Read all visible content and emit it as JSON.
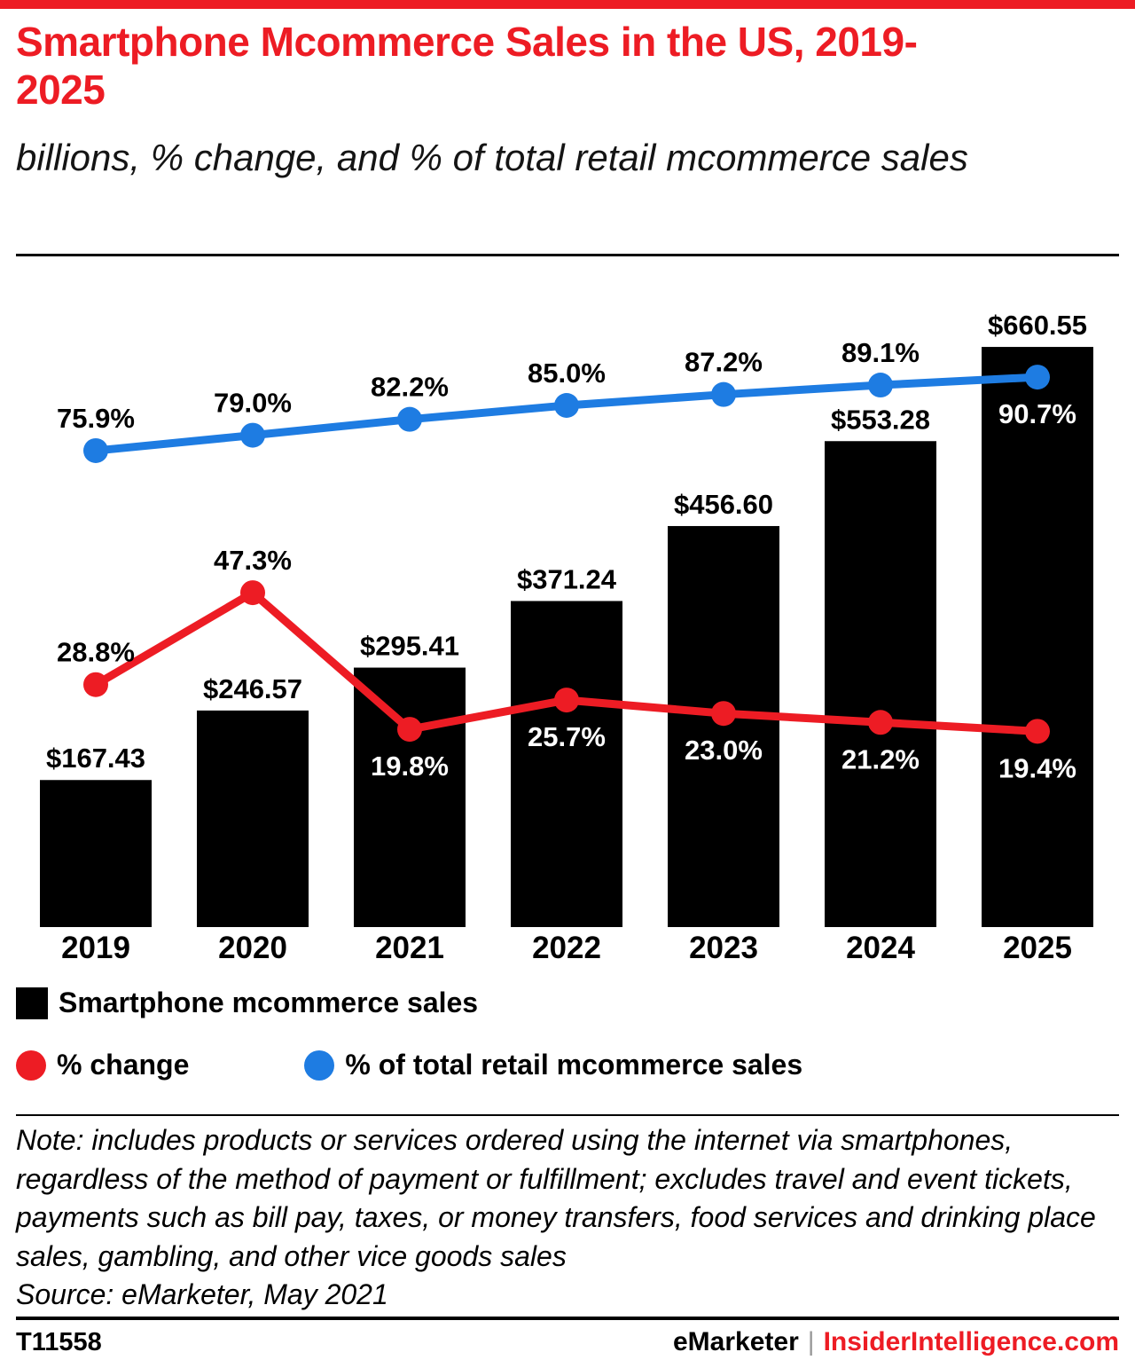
{
  "page": {
    "title": "Smartphone Mcommerce Sales in the US, 2019-2025",
    "subtitle": "billions, % change, and % of total retail mcommerce sales"
  },
  "colors": {
    "red": "#ed1c24",
    "blue": "#1e7ce2",
    "black": "#000000",
    "white_label": "#ffffff"
  },
  "chart_data": {
    "type": "bar+line",
    "title": "Smartphone Mcommerce Sales in the US, 2019-2025",
    "subtitle": "billions, % change, and % of total retail mcommerce sales",
    "categories": [
      "2019",
      "2020",
      "2021",
      "2022",
      "2023",
      "2024",
      "2025"
    ],
    "bars": {
      "name": "Smartphone mcommerce sales",
      "unit": "billions of US dollars",
      "values": [
        167.43,
        246.57,
        295.41,
        371.24,
        456.6,
        553.28,
        660.55
      ],
      "labels": [
        "$167.43",
        "$246.57",
        "$295.41",
        "$371.24",
        "$456.60",
        "$553.28",
        "$660.55"
      ],
      "ylim": [
        0,
        700
      ]
    },
    "line_series": [
      {
        "name": "% change",
        "color_key": "red",
        "values": [
          28.8,
          47.3,
          19.8,
          25.7,
          23.0,
          21.2,
          19.4
        ],
        "labels": [
          "28.8%",
          "47.3%",
          "19.8%",
          "25.7%",
          "23.0%",
          "21.2%",
          "19.4%"
        ],
        "label_positions": [
          "above",
          "above",
          "below",
          "below",
          "below",
          "below",
          "below"
        ]
      },
      {
        "name": "% of total retail mcommerce sales",
        "color_key": "blue",
        "values": [
          75.9,
          79.0,
          82.2,
          85.0,
          87.2,
          89.1,
          90.7
        ],
        "labels": [
          "75.9%",
          "79.0%",
          "82.2%",
          "85.0%",
          "87.2%",
          "89.1%",
          "90.7%"
        ],
        "label_positions": [
          "above",
          "above",
          "above",
          "above",
          "above",
          "above",
          "below"
        ]
      }
    ],
    "grid": false,
    "legend_position": "bottom"
  },
  "legend": {
    "bar_label": "Smartphone mcommerce sales",
    "red_label": "% change",
    "blue_label": "% of total retail mcommerce sales"
  },
  "note": "Note: includes products or services ordered using the internet via smartphones, regardless of the method of payment or fulfillment; excludes travel and event tickets, payments such as bill pay, taxes, or money transfers, food services and drinking place sales, gambling, and other vice goods sales",
  "source": "Source: eMarketer, May 2021",
  "footer": {
    "chart_id": "T11558",
    "brand": "eMarketer",
    "divider": "|",
    "site": "InsiderIntelligence.com"
  }
}
